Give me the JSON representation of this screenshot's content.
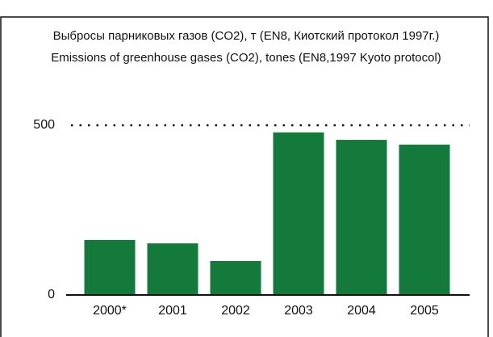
{
  "chart_data": {
    "type": "bar",
    "title": "Выбросы парниковых газов (CO2), т (EN8, Киотский протокол 1997г.)",
    "subtitle": "Emissions of greenhouse gases (CO2), tones (EN8,1997 Kyoto protocol)",
    "categories": [
      "2000*",
      "2001",
      "2002",
      "2003",
      "2004",
      "2005"
    ],
    "values": [
      162,
      152,
      100,
      479,
      457,
      443
    ],
    "color": "#137a3b",
    "ylim": [
      0,
      500
    ],
    "yticks": [
      0,
      500
    ],
    "grid": true
  }
}
